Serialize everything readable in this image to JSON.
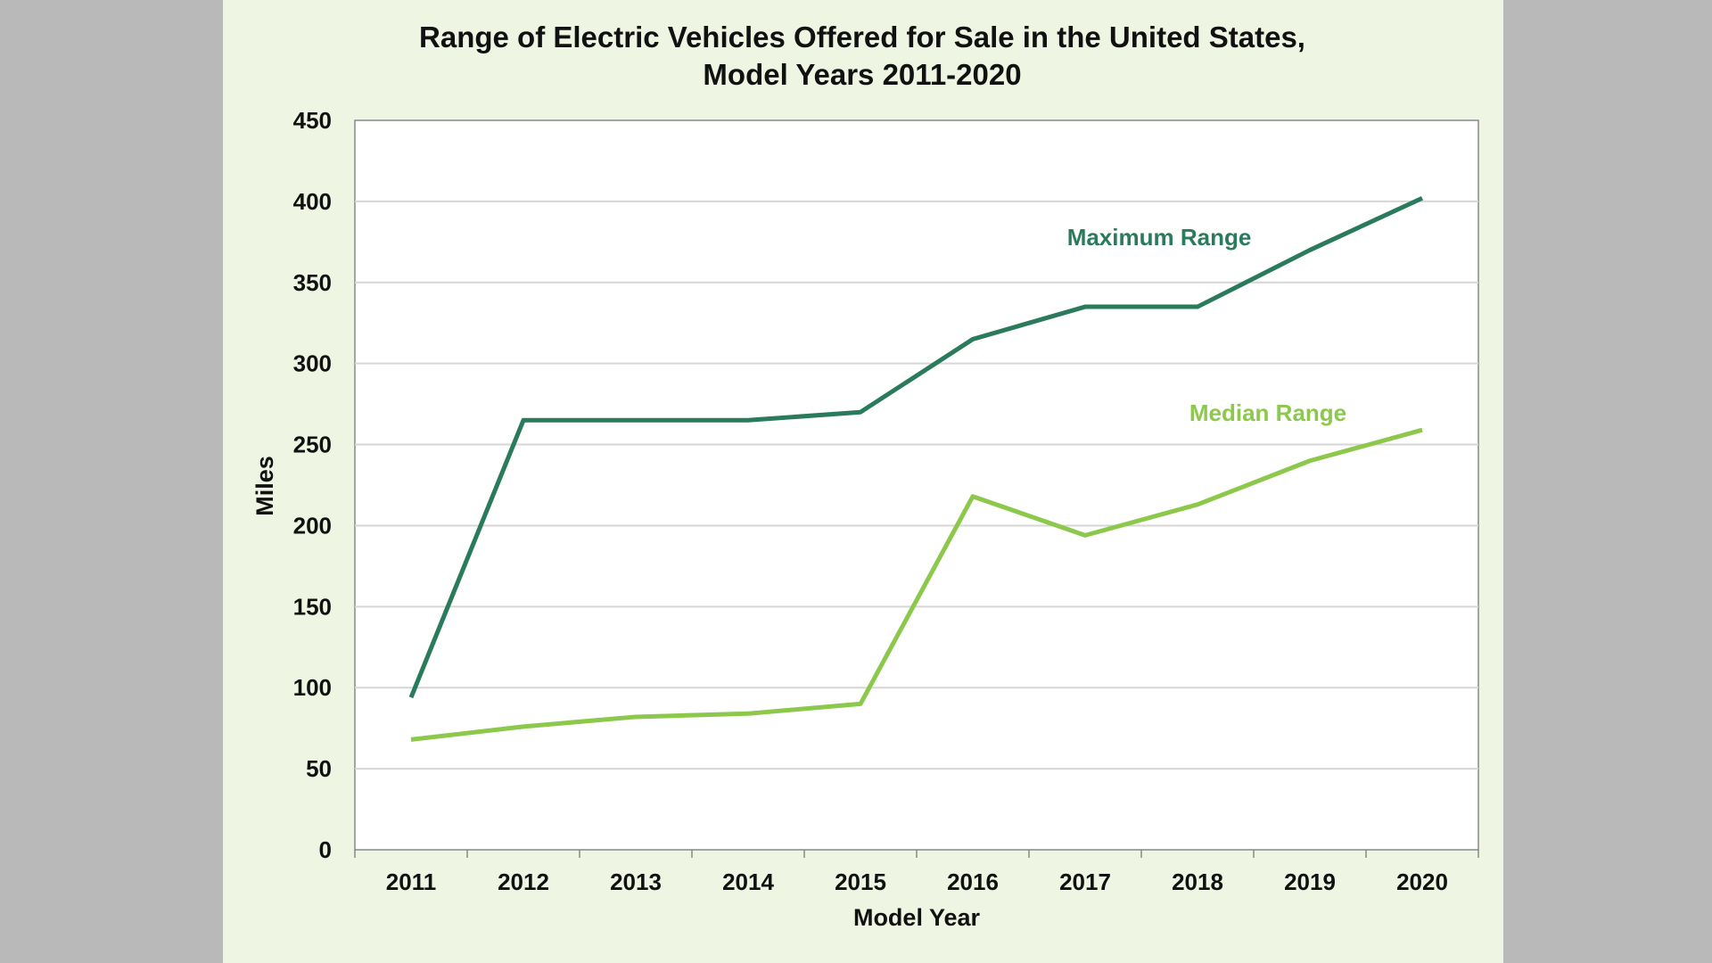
{
  "chart_data": {
    "type": "line",
    "title": [
      "Range of Electric Vehicles Offered for Sale in the United States,",
      "Model Years 2011-2020"
    ],
    "xlabel": "Model Year",
    "ylabel": "Miles",
    "categories": [
      "2011",
      "2012",
      "2013",
      "2014",
      "2015",
      "2016",
      "2017",
      "2018",
      "2019",
      "2020"
    ],
    "yticks": [
      "0",
      "50",
      "100",
      "150",
      "200",
      "250",
      "300",
      "350",
      "400",
      "450"
    ],
    "ylim": [
      0,
      450
    ],
    "grid": true,
    "legend": "inline labels",
    "series": [
      {
        "name": "Maximum Range",
        "color": "#2a7a5c",
        "values": [
          94,
          265,
          265,
          265,
          270,
          315,
          335,
          335,
          370,
          402
        ]
      },
      {
        "name": "Median Range",
        "color": "#8cc84b",
        "values": [
          68,
          76,
          82,
          84,
          90,
          218,
          194,
          213,
          240,
          259
        ]
      }
    ]
  }
}
